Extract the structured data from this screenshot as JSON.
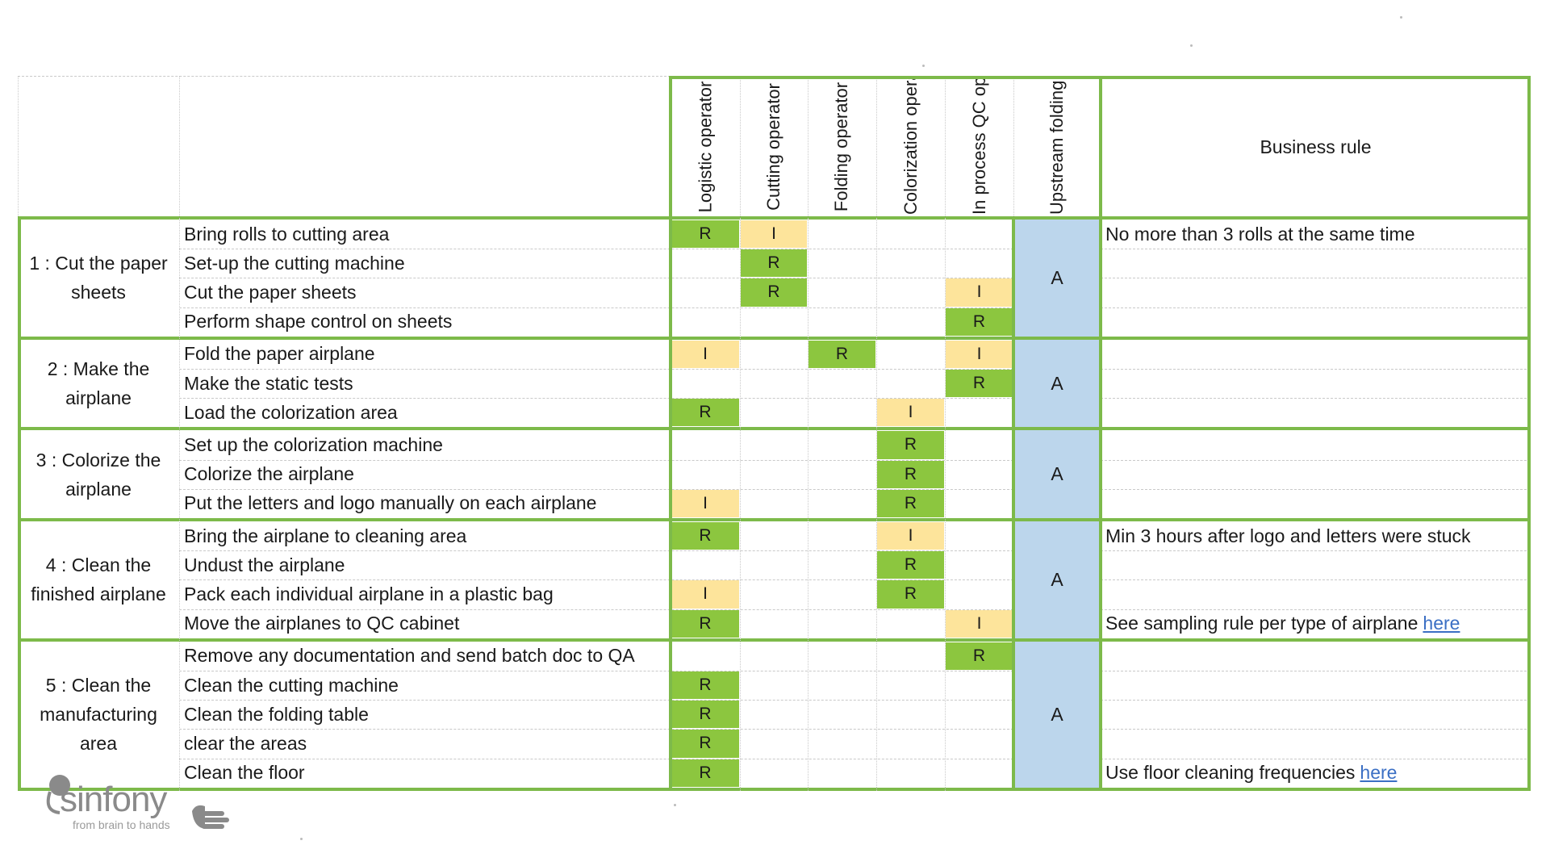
{
  "colors": {
    "responsible": "#8cc63f",
    "informed": "#fde49b",
    "accountable": "#bcd6ec",
    "border": "#7dba4a",
    "link": "#3b6fc4"
  },
  "header": {
    "roles": [
      "Logistic operator",
      "Cutting operator",
      "Folding operator",
      "Colorization operator",
      "In process QC operator",
      "Upstream folding area supervisor"
    ],
    "business_rule": "Business rule"
  },
  "groups": [
    {
      "label": "1 : Cut the paper sheets",
      "accountable": "A",
      "tasks": [
        {
          "activity": "Bring rolls to cutting area",
          "raci": [
            "R",
            "I",
            "",
            "",
            ""
          ],
          "rule": "No more than 3 rolls at the same time",
          "rule_link": ""
        },
        {
          "activity": "Set-up the cutting machine",
          "raci": [
            "",
            "R",
            "",
            "",
            ""
          ],
          "rule": "",
          "rule_link": ""
        },
        {
          "activity": "Cut the paper sheets",
          "raci": [
            "",
            "R",
            "",
            "",
            "I"
          ],
          "rule": "",
          "rule_link": ""
        },
        {
          "activity": "Perform shape control on sheets",
          "raci": [
            "",
            "",
            "",
            "",
            "R"
          ],
          "rule": "",
          "rule_link": ""
        }
      ]
    },
    {
      "label": "2 : Make the airplane",
      "accountable": "A",
      "tasks": [
        {
          "activity": "Fold the paper airplane",
          "raci": [
            "I",
            "",
            "R",
            "",
            "I"
          ],
          "rule": "",
          "rule_link": ""
        },
        {
          "activity": "Make the static tests",
          "raci": [
            "",
            "",
            "",
            "",
            "R"
          ],
          "rule": "",
          "rule_link": ""
        },
        {
          "activity": "Load the colorization area",
          "raci": [
            "R",
            "",
            "",
            "I",
            ""
          ],
          "rule": "",
          "rule_link": ""
        }
      ]
    },
    {
      "label": "3 : Colorize the airplane",
      "accountable": "A",
      "tasks": [
        {
          "activity": "Set up the colorization machine",
          "raci": [
            "",
            "",
            "",
            "R",
            ""
          ],
          "rule": "",
          "rule_link": ""
        },
        {
          "activity": "Colorize the airplane",
          "raci": [
            "",
            "",
            "",
            "R",
            ""
          ],
          "rule": "",
          "rule_link": ""
        },
        {
          "activity": "Put the letters and logo manually on each airplane",
          "raci": [
            "I",
            "",
            "",
            "R",
            ""
          ],
          "rule": "",
          "rule_link": ""
        }
      ]
    },
    {
      "label": "4 : Clean the finished airplane",
      "accountable": "A",
      "tasks": [
        {
          "activity": "Bring the airplane to cleaning area",
          "raci": [
            "R",
            "",
            "",
            "I",
            ""
          ],
          "rule": "Min 3 hours after logo and letters were stuck",
          "rule_link": ""
        },
        {
          "activity": "Undust the airplane",
          "raci": [
            "",
            "",
            "",
            "R",
            ""
          ],
          "rule": "",
          "rule_link": ""
        },
        {
          "activity": "Pack each individual airplane in a plastic bag",
          "raci": [
            "I",
            "",
            "",
            "R",
            ""
          ],
          "rule": "",
          "rule_link": ""
        },
        {
          "activity": "Move the airplanes to QC cabinet",
          "raci": [
            "R",
            "",
            "",
            "",
            "I"
          ],
          "rule": "See sampling rule per type of airplane",
          "rule_link": "here"
        }
      ]
    },
    {
      "label": "5 : Clean the manufacturing area",
      "accountable": "A",
      "tasks": [
        {
          "activity": "Remove any documentation and send batch doc to QA",
          "raci": [
            "",
            "",
            "",
            "",
            "R"
          ],
          "rule": "",
          "rule_link": ""
        },
        {
          "activity": "Clean the cutting machine",
          "raci": [
            "R",
            "",
            "",
            "",
            ""
          ],
          "rule": "",
          "rule_link": ""
        },
        {
          "activity": "Clean the folding table",
          "raci": [
            "R",
            "",
            "",
            "",
            ""
          ],
          "rule": "",
          "rule_link": ""
        },
        {
          "activity": "clear the areas",
          "raci": [
            "R",
            "",
            "",
            "",
            ""
          ],
          "rule": "",
          "rule_link": ""
        },
        {
          "activity": "Clean the floor",
          "raci": [
            "R",
            "",
            "",
            "",
            ""
          ],
          "rule": "Use floor cleaning frequencies",
          "rule_link": "here"
        }
      ]
    }
  ],
  "logo": {
    "name": "sinfony",
    "tagline": "from brain to hands",
    "icon": "hand-icon"
  }
}
